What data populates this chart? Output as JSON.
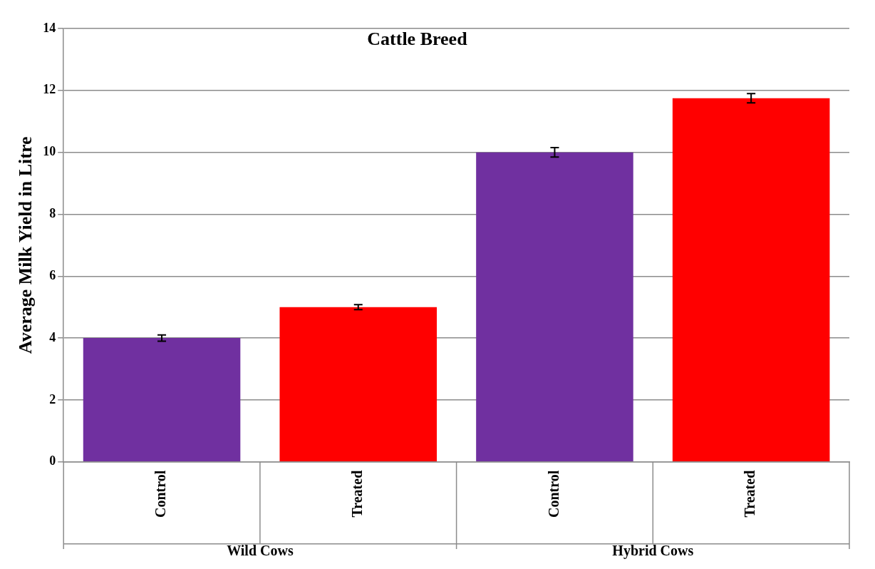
{
  "chart_data": {
    "type": "bar",
    "title": "Cattle Breed",
    "ylabel": "Average Milk Yield in Litre",
    "categories": [
      "Control",
      "Treated",
      "Control",
      "Treated"
    ],
    "values": [
      4,
      5,
      10,
      11.75
    ],
    "errors": [
      0.1,
      0.08,
      0.15,
      0.15
    ],
    "colors": [
      "#7030a0",
      "#ff0000",
      "#7030a0",
      "#ff0000"
    ],
    "annotations": [
      "Wild Cows",
      "Hybrid Cows"
    ],
    "ylim": [
      0,
      14
    ],
    "yticks": [
      0,
      2,
      4,
      6,
      8,
      10,
      12,
      14
    ],
    "grid": "y",
    "legend": false
  }
}
